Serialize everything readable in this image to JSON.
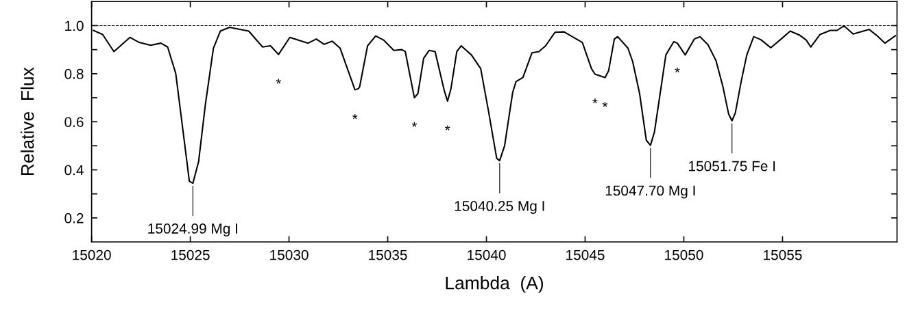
{
  "chart_data": {
    "type": "line",
    "xlabel": "Lambda  (A)",
    "ylabel": "Relative  Flux",
    "xlim": [
      15020,
      15060.8
    ],
    "ylim": [
      0.1,
      1.1
    ],
    "xticks": [
      15020,
      15025,
      15030,
      15035,
      15040,
      15045,
      15050,
      15055
    ],
    "yticks": [
      0.2,
      {
        "value": 0.3,
        "label": null
      },
      0.4,
      {
        "value": 0.5,
        "label": null
      },
      0.6,
      {
        "value": 0.7,
        "label": null
      },
      0.8,
      {
        "value": 0.9,
        "label": null
      },
      {
        "value": 1.0,
        "label": "1.0"
      }
    ],
    "grid": false,
    "legend": false,
    "marker": "none",
    "line_style": "solid",
    "ref_lines": [
      {
        "axis": "y",
        "value": 1.0,
        "label": null,
        "color": "#000000",
        "line_style": "dashed"
      }
    ],
    "series": [
      {
        "color": "#000000",
        "x": [
          15020.09,
          15020.56,
          15021.13,
          15021.94,
          15022.41,
          15022.99,
          15023.51,
          15023.85,
          15024.26,
          15024.61,
          15024.95,
          15025.13,
          15025.42,
          15025.76,
          15026.17,
          15026.52,
          15026.98,
          15027.96,
          15028.66,
          15029.06,
          15029.47,
          15030.04,
          15030.97,
          15031.38,
          15031.78,
          15032.19,
          15032.59,
          15033.34,
          15033.52,
          15033.58,
          15033.98,
          15034.39,
          15034.79,
          15035.31,
          15035.72,
          15035.89,
          15036.35,
          15036.53,
          15036.82,
          15037.1,
          15037.4,
          15037.86,
          15038.03,
          15038.2,
          15038.5,
          15038.72,
          15039.24,
          15039.71,
          15040.11,
          15040.52,
          15040.67,
          15040.92,
          15041.33,
          15041.5,
          15041.85,
          15042.31,
          15042.66,
          15043.0,
          15043.47,
          15043.93,
          15044.86,
          15045.32,
          15045.5,
          15046.01,
          15046.19,
          15046.48,
          15046.65,
          15047.17,
          15047.41,
          15047.76,
          15048.1,
          15048.31,
          15048.51,
          15048.8,
          15049.09,
          15049.49,
          15049.67,
          15050.07,
          15050.53,
          15050.82,
          15051.22,
          15051.63,
          15051.98,
          15052.27,
          15052.44,
          15052.61,
          15052.9,
          15053.19,
          15053.54,
          15053.89,
          15054.41,
          15054.93,
          15055.39,
          15055.85,
          15056.2,
          15056.43,
          15056.9,
          15057.42,
          15057.76,
          15058.11,
          15058.58,
          15059.39,
          15059.79,
          15060.19,
          15060.72
        ],
        "values": [
          0.98,
          0.963,
          0.892,
          0.951,
          0.93,
          0.918,
          0.927,
          0.911,
          0.802,
          0.575,
          0.353,
          0.344,
          0.434,
          0.67,
          0.906,
          0.977,
          0.993,
          0.977,
          0.911,
          0.916,
          0.88,
          0.951,
          0.927,
          0.944,
          0.922,
          0.935,
          0.906,
          0.733,
          0.738,
          0.746,
          0.916,
          0.957,
          0.94,
          0.897,
          0.9,
          0.892,
          0.7,
          0.717,
          0.864,
          0.897,
          0.892,
          0.731,
          0.686,
          0.736,
          0.892,
          0.916,
          0.878,
          0.821,
          0.642,
          0.448,
          0.438,
          0.5,
          0.722,
          0.767,
          0.784,
          0.887,
          0.892,
          0.916,
          0.972,
          0.974,
          0.93,
          0.821,
          0.798,
          0.784,
          0.812,
          0.944,
          0.954,
          0.906,
          0.85,
          0.717,
          0.523,
          0.502,
          0.557,
          0.717,
          0.878,
          0.933,
          0.927,
          0.878,
          0.944,
          0.954,
          0.921,
          0.854,
          0.746,
          0.632,
          0.604,
          0.637,
          0.765,
          0.878,
          0.954,
          0.942,
          0.908,
          0.944,
          0.977,
          0.961,
          0.94,
          0.911,
          0.963,
          0.98,
          0.98,
          0.999,
          0.965,
          0.984,
          0.958,
          0.927,
          0.958
        ]
      }
    ],
    "annotations": [
      {
        "text": "15024.99 Mg I",
        "x": 15025.13,
        "y": 0.344
      },
      {
        "text": "15040.25 Mg I",
        "x": 15040.67,
        "y": 0.438
      },
      {
        "text": "15047.70 Mg I",
        "x": 15048.31,
        "y": 0.502
      },
      {
        "text": "15051.75 Fe I",
        "x": 15052.44,
        "y": 0.604
      },
      {
        "text": "*",
        "x": 15029.47,
        "y": 0.88
      },
      {
        "text": "*",
        "x": 15033.34,
        "y": 0.733
      },
      {
        "text": "*",
        "x": 15036.35,
        "y": 0.7
      },
      {
        "text": "*",
        "x": 15038.03,
        "y": 0.686
      },
      {
        "text": "*",
        "x": 15045.5,
        "y": 0.798
      },
      {
        "text": "*",
        "x": 15046.01,
        "y": 0.784
      },
      {
        "text": "*",
        "x": 15049.67,
        "y": 0.927
      }
    ]
  }
}
